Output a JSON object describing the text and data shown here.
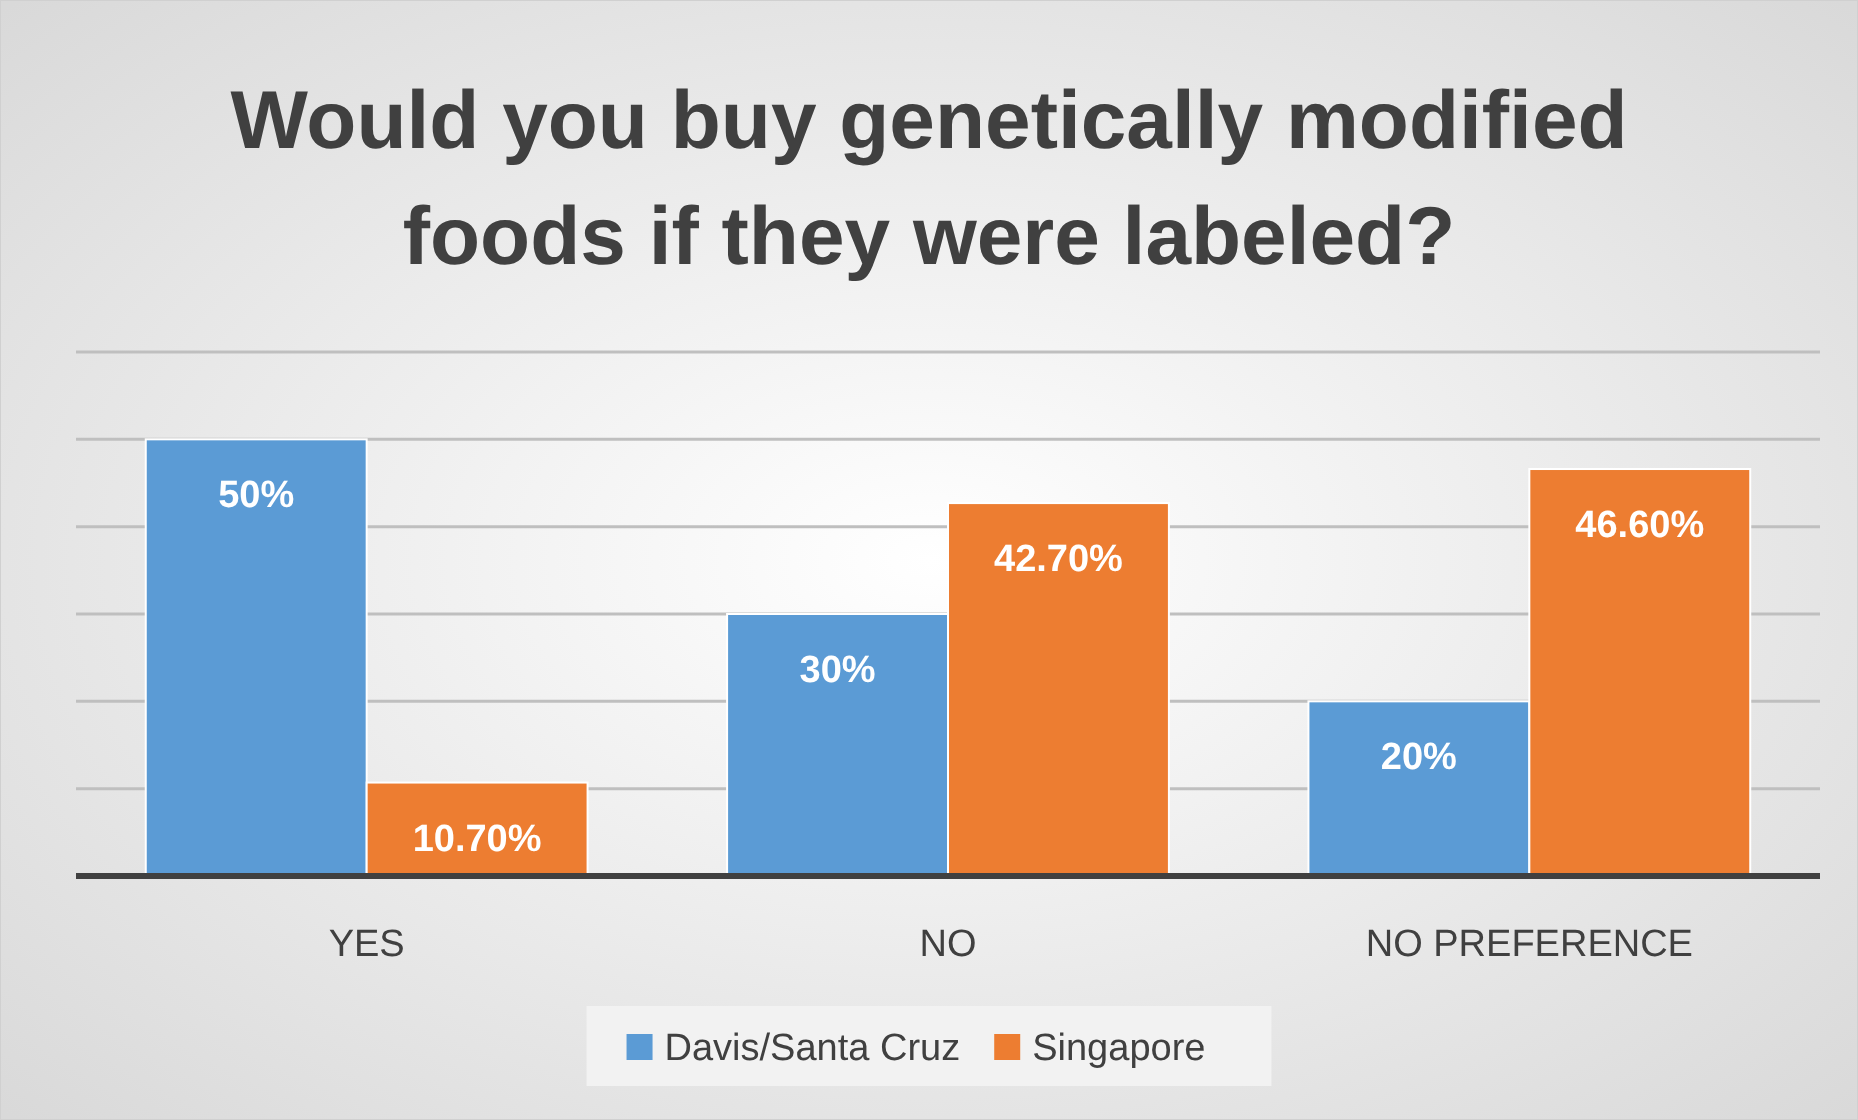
{
  "chart_data": {
    "type": "bar",
    "title": "Would you buy genetically modified foods if they were labeled?",
    "categories": [
      "YES",
      "NO",
      "NO PREFERENCE"
    ],
    "series": [
      {
        "name": "Davis/Santa Cruz",
        "color": "#5b9bd5",
        "values": [
          50,
          30,
          20
        ],
        "value_labels": [
          "50%",
          "30%",
          "20%"
        ]
      },
      {
        "name": "Singapore",
        "color": "#ed7d31",
        "values": [
          10.7,
          42.7,
          46.6
        ],
        "value_labels": [
          "10.70%",
          "42.70%",
          "46.60%"
        ]
      }
    ],
    "ylim": [
      0,
      60
    ],
    "yticks": [
      {
        "value": 0,
        "label": null
      },
      {
        "value": 10,
        "label": null
      },
      {
        "value": 20,
        "label": null
      },
      {
        "value": 30,
        "label": null
      },
      {
        "value": 40,
        "label": null
      },
      {
        "value": 50,
        "label": null
      },
      {
        "value": 60,
        "label": null
      }
    ],
    "grid": "y",
    "tick_labels": "x",
    "legend": "bottom"
  }
}
